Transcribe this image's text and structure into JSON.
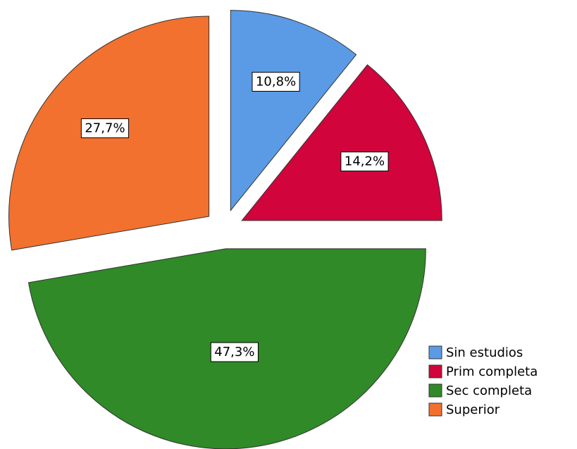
{
  "chart_data": {
    "type": "pie",
    "categories": [
      "Sin estudios",
      "Prim completa",
      "Sec completa",
      "Superior"
    ],
    "values": [
      10.8,
      14.2,
      47.3,
      27.7
    ],
    "value_labels": [
      "10,8%",
      "14,2%",
      "47,3%",
      "27,7%"
    ],
    "colors": [
      "#5b9be6",
      "#d1043b",
      "#2f8a27",
      "#f2712f"
    ],
    "legend": "lower right"
  }
}
